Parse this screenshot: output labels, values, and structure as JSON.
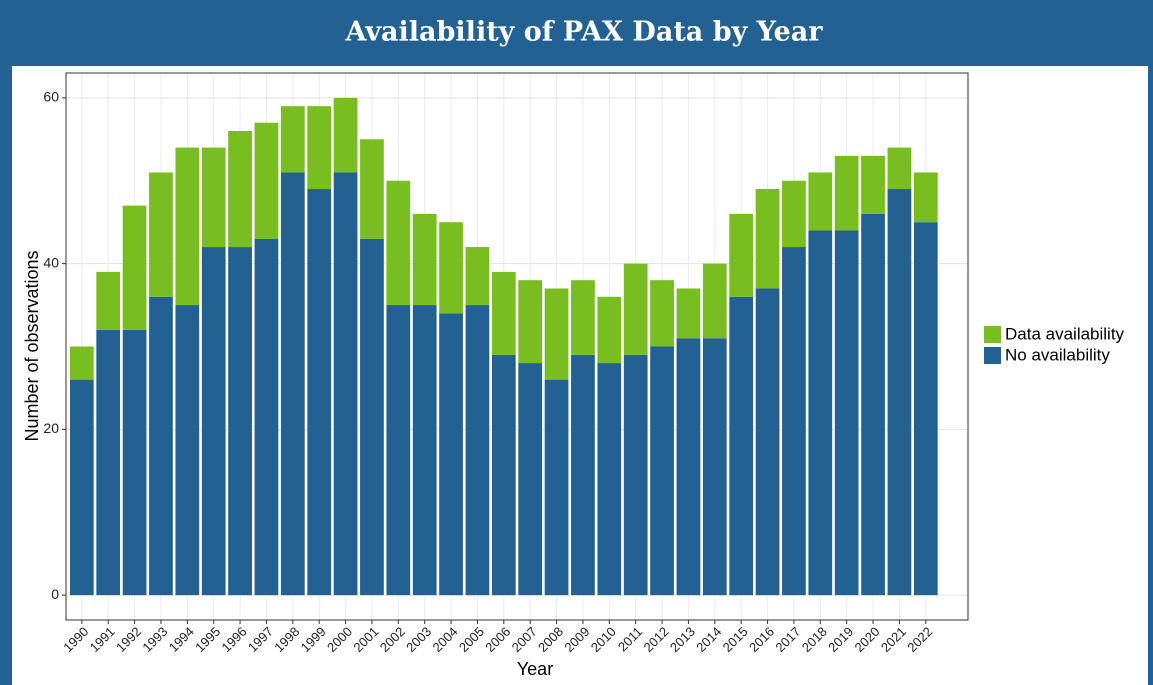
{
  "chart_data": {
    "type": "stacked_bar",
    "title": "Availability of PAX Data by Year",
    "xlabel": "Year",
    "ylabel": "Number of observations",
    "categories": [
      "1990",
      "1991",
      "1992",
      "1993",
      "1994",
      "1995",
      "1996",
      "1997",
      "1998",
      "1999",
      "2000",
      "2001",
      "2002",
      "2003",
      "2004",
      "2005",
      "2006",
      "2007",
      "2008",
      "2009",
      "2010",
      "2011",
      "2012",
      "2013",
      "2014",
      "2015",
      "2016",
      "2017",
      "2018",
      "2019",
      "2020",
      "2021",
      "2022"
    ],
    "series": [
      {
        "name": "Data availability",
        "color": "#78be20",
        "values": [
          4,
          7,
          15,
          15,
          19,
          12,
          14,
          14,
          8,
          10,
          9,
          12,
          15,
          11,
          11,
          7,
          10,
          10,
          11,
          9,
          8,
          11,
          8,
          6,
          9,
          10,
          12,
          8,
          7,
          9,
          7,
          5,
          6
        ]
      },
      {
        "name": "No availability",
        "color": "#236192",
        "values": [
          26,
          32,
          32,
          36,
          35,
          42,
          42,
          43,
          51,
          49,
          51,
          43,
          35,
          35,
          34,
          35,
          29,
          28,
          26,
          29,
          28,
          29,
          30,
          31,
          31,
          36,
          37,
          42,
          44,
          44,
          46,
          49,
          45
        ]
      }
    ],
    "ylim": [
      -3,
      63
    ],
    "yticks": [
      0,
      20,
      40,
      60
    ],
    "grid": true,
    "legend": "right"
  }
}
